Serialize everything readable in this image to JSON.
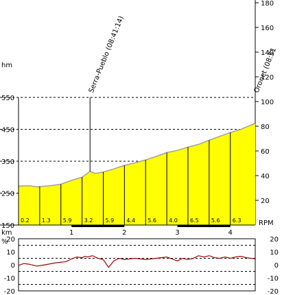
{
  "chart_data": [
    {
      "type": "area",
      "ylabel": "hm",
      "xlabel": "km",
      "y2label": "RPM",
      "ylim": [
        150,
        550
      ],
      "y_ticks": [
        150,
        250,
        350,
        450,
        550
      ],
      "xlim": [
        0,
        4.47
      ],
      "x_ticks": [
        1,
        2,
        3,
        4
      ],
      "y2lim": [
        0,
        180
      ],
      "y2_ticks": [
        20,
        40,
        60,
        80,
        100,
        120,
        140,
        160,
        180
      ],
      "fill_color": "#ffff00",
      "grid": "dashed horizontal",
      "elevation": {
        "x": [
          0,
          0.2,
          0.35,
          0.6,
          0.8,
          1.0,
          1.2,
          1.35,
          1.45,
          1.6,
          1.8,
          2.0,
          2.2,
          2.4,
          2.6,
          2.8,
          3.0,
          3.2,
          3.4,
          3.6,
          3.8,
          4.0,
          4.2,
          4.47
        ],
        "y": [
          272,
          273,
          270,
          273,
          278,
          290,
          300,
          318,
          312,
          316,
          326,
          337,
          345,
          354,
          365,
          377,
          384,
          394,
          403,
          416,
          428,
          440,
          450,
          469
        ]
      },
      "segments": [
        {
          "label": "0.2"
        },
        {
          "label": "1.3"
        },
        {
          "label": "5.9"
        },
        {
          "label": "3.2"
        },
        {
          "label": "5.9"
        },
        {
          "label": "4.4"
        },
        {
          "label": "5.6"
        },
        {
          "label": "4.0"
        },
        {
          "label": "6.5"
        },
        {
          "label": "5.6"
        },
        {
          "label": "6.3"
        }
      ],
      "segment_bounds": [
        0,
        0.4,
        0.8,
        1.2,
        1.6,
        2.0,
        2.4,
        2.8,
        3.2,
        3.6,
        4.0,
        4.47
      ],
      "waypoints": [
        {
          "label": "Serra-Pueblo (08:41:14)",
          "x": 1.35
        },
        {
          "label": "Oronet (08:51",
          "x": 4.47
        }
      ],
      "km_bar_segments": [
        {
          "from": 1.0,
          "to": 2.0
        },
        {
          "from": 3.0,
          "to": 4.0
        }
      ]
    },
    {
      "type": "line",
      "ylabel": "%",
      "ylim": [
        -20,
        20
      ],
      "y_ticks": [
        20,
        10,
        0,
        -10,
        -20
      ],
      "y2_ticks": [
        20,
        10,
        0,
        -10,
        -20
      ],
      "grid": "dashed horizontal",
      "x": [
        0,
        0.1,
        0.2,
        0.35,
        0.5,
        0.7,
        0.9,
        1.0,
        1.1,
        1.2,
        1.25,
        1.3,
        1.4,
        1.5,
        1.6,
        1.7,
        1.8,
        1.9,
        2.0,
        2.2,
        2.4,
        2.6,
        2.8,
        3.0,
        3.1,
        3.2,
        3.3,
        3.4,
        3.5,
        3.6,
        3.7,
        3.8,
        3.9,
        4.0,
        4.1,
        4.2,
        4.3,
        4.47
      ],
      "y": [
        -0.5,
        1,
        0.5,
        -1,
        0,
        1.5,
        2.5,
        4.5,
        6,
        5.5,
        6.5,
        6,
        7,
        5,
        4,
        -2,
        3,
        5,
        4,
        5,
        4,
        5,
        6,
        3,
        5,
        4,
        5,
        7,
        6,
        7,
        5.5,
        5,
        6,
        5,
        6,
        6.5,
        5.5,
        4.5
      ]
    }
  ]
}
